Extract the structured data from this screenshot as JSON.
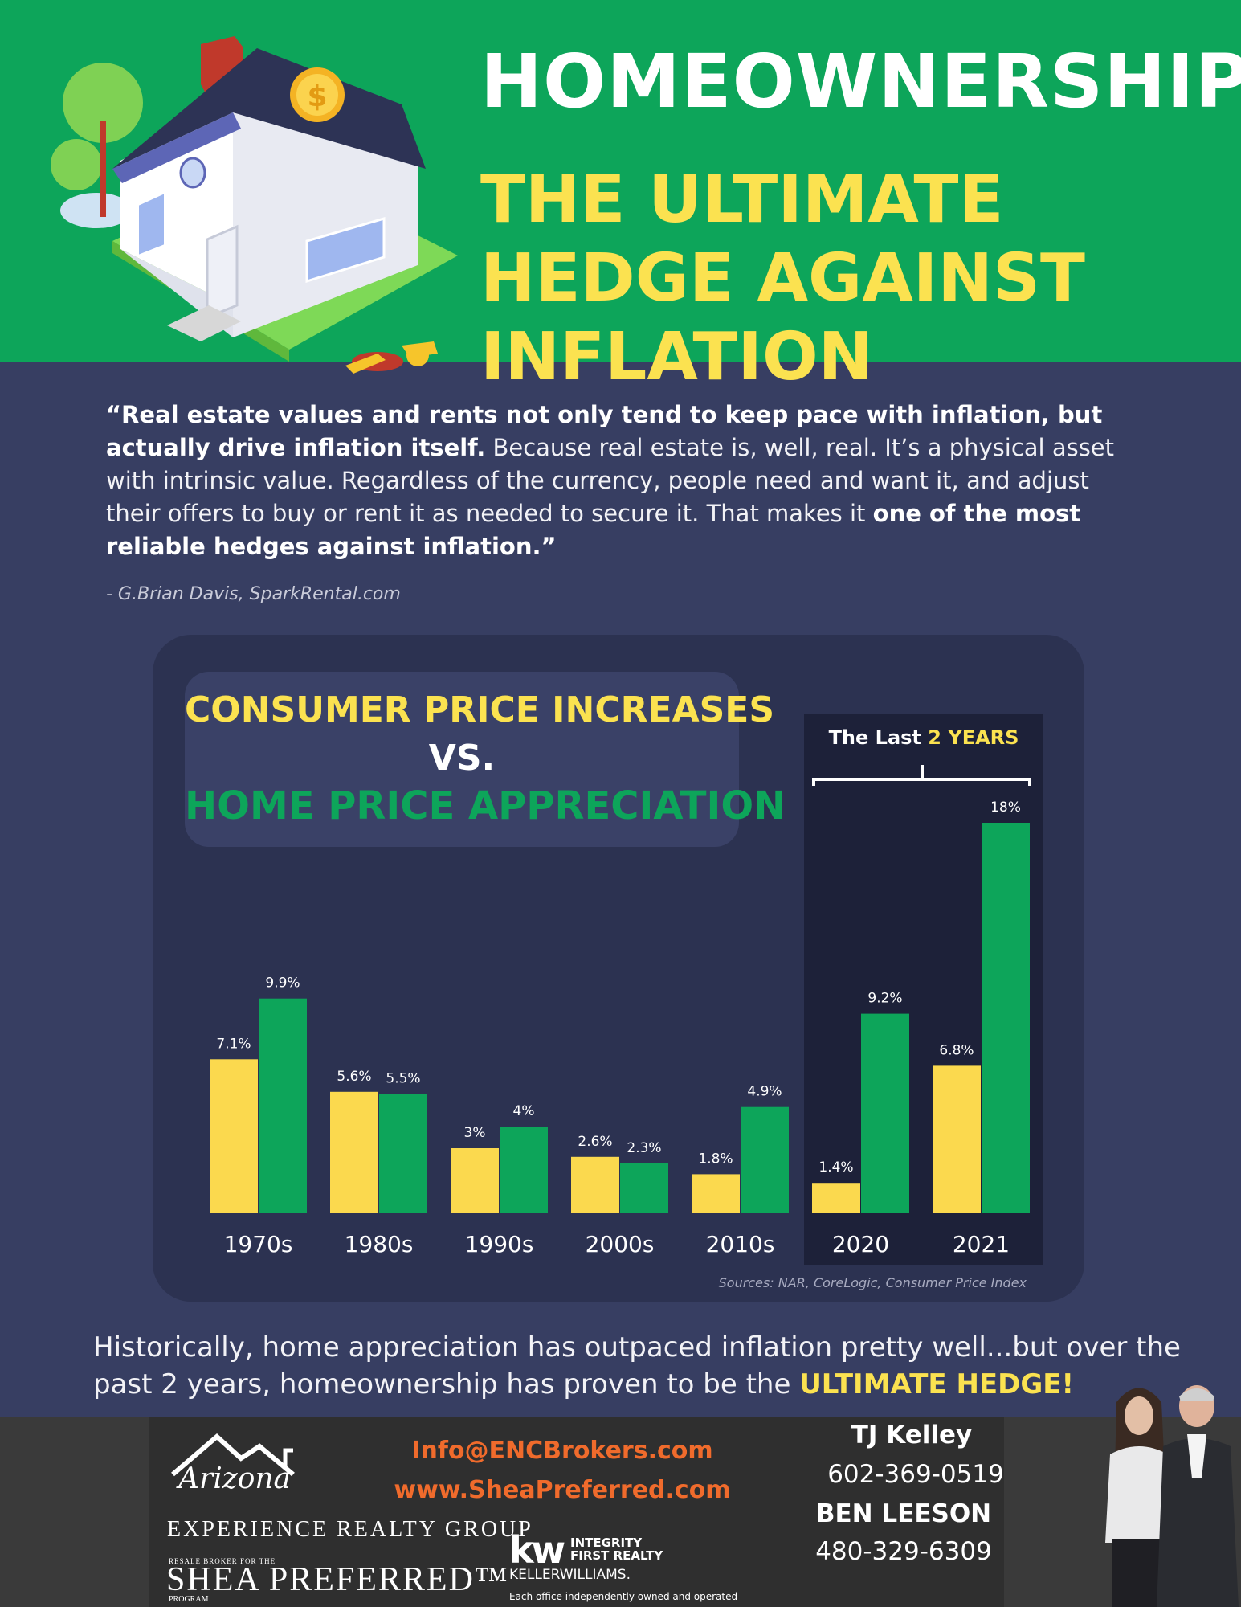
{
  "header": {
    "title_line1": "HOMEOWNERSHIP:",
    "title_line2": "THE ULTIMATE HEDGE AGAINST INFLATION"
  },
  "quote": {
    "bold_open": "“Real estate values and rents not only tend to keep pace with inflation, but actually drive inflation itself.",
    "text_middle": " Because real estate is, well, real. It’s a physical asset with intrinsic value. Regardless of the currency, people need and want it, and adjust their offers to buy or rent it as needed to secure it. That makes it ",
    "bold_close": "one of the most reliable hedges against inflation.”",
    "attribution": "- G.Brian Davis, SparkRental.com"
  },
  "chart_data": {
    "type": "bar",
    "title_line1": "CONSUMER PRICE INCREASES",
    "title_line2": "VS.",
    "title_line3": "HOME PRICE APPRECIATION",
    "categories": [
      "1970s",
      "1980s",
      "1990s",
      "2000s",
      "2010s",
      "2020",
      "2021"
    ],
    "series": [
      {
        "color": "#fbd94e",
        "values": [
          7.1,
          5.6,
          3,
          2.6,
          1.8,
          1.4,
          6.8
        ],
        "labels": [
          "7.1%",
          "5.6%",
          "3%",
          "2.6%",
          "1.8%",
          "1.4%",
          "6.8%"
        ]
      },
      {
        "color": "#0da55a",
        "values": [
          9.9,
          5.5,
          4,
          2.3,
          4.9,
          9.2,
          18
        ],
        "labels": [
          "9.9%",
          "5.5%",
          "4%",
          "2.3%",
          "4.9%",
          "9.2%",
          "18%"
        ]
      }
    ],
    "ylim": [
      0,
      18
    ],
    "highlight": {
      "label_prefix": "The Last ",
      "label_highlight": "2 YEARS",
      "categories": [
        "2020",
        "2021"
      ]
    },
    "sources": "Sources: NAR, CoreLogic, Consumer Price Index"
  },
  "conclusion": {
    "text": "Historically, home appreciation has outpaced inflation pretty well...but over the past 2 years, homeownership has proven to be the ",
    "highlight": "ULTIMATE HEDGE!"
  },
  "footer": {
    "brand_script": "Arizona",
    "brand_line1": "EXPERIENCE REALTY GROUP",
    "brand_small": "RESALE BROKER FOR THE",
    "brand_shea": "SHEA PREFERRED™",
    "brand_program": "PROGRAM",
    "email": "Info@ENCBrokers.com",
    "website": "www.SheaPreferred.com",
    "kw_mark": "kw",
    "kw_integrity": "INTEGRITY FIRST REALTY",
    "kw_name": "KELLERWILLIAMS.",
    "kw_disclaimer": "Each office independently owned and operated",
    "agents": [
      {
        "name": "TJ Kelley",
        "phone": "602-369-0519"
      },
      {
        "name": "BEN LEESON",
        "phone": "480-329-6309"
      }
    ]
  }
}
